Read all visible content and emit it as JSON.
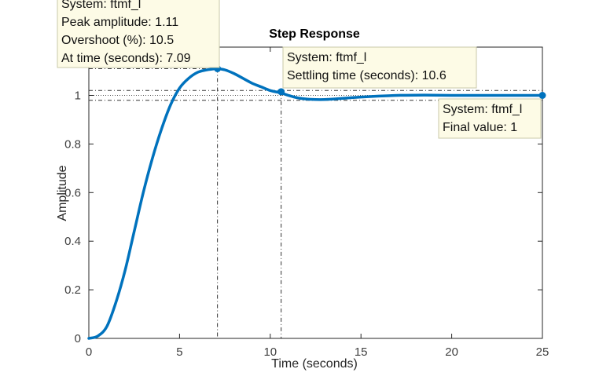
{
  "chart_data": {
    "type": "line",
    "title": "Step Response",
    "xlabel": "Time (seconds)",
    "ylabel": "Amplitude",
    "xlim": [
      0,
      25
    ],
    "ylim": [
      0,
      1.2
    ],
    "xticks": [
      0,
      5,
      10,
      15,
      20,
      25
    ],
    "xtick_labels": [
      "0",
      "5",
      "10",
      "15",
      "20",
      "25"
    ],
    "yticks": [
      0,
      0.2,
      0.4,
      0.6,
      0.8,
      1
    ],
    "ytick_labels": [
      "0",
      "0.2",
      "0.4",
      "0.6",
      "0.8",
      "1"
    ],
    "grid": false,
    "series": [
      {
        "color": "#0072bd",
        "x": [
          0,
          0.5,
          1,
          1.5,
          2,
          2.5,
          3,
          3.5,
          4,
          4.5,
          5,
          5.5,
          6,
          6.5,
          7,
          7.09,
          7.5,
          8,
          8.5,
          9,
          9.5,
          10,
          10.6,
          11,
          11.5,
          12,
          12.5,
          13,
          13.5,
          14,
          15,
          16,
          17,
          18,
          19,
          20,
          21,
          22,
          23,
          24,
          25
        ],
        "y": [
          0,
          0.01,
          0.05,
          0.15,
          0.28,
          0.44,
          0.6,
          0.74,
          0.86,
          0.96,
          1.03,
          1.07,
          1.095,
          1.105,
          1.11,
          1.11,
          1.105,
          1.09,
          1.07,
          1.05,
          1.035,
          1.02,
          1.01,
          1.0,
          0.99,
          0.985,
          0.983,
          0.983,
          0.985,
          0.988,
          0.993,
          0.997,
          1.0,
          1.001,
          1.001,
          1.0,
          1.0,
          1.0,
          1.0,
          1.0,
          1.0
        ]
      }
    ],
    "annotations": [
      {
        "kind": "peak",
        "x": 7.09,
        "y": 1.11,
        "lines": [
          "System: ftmf_l",
          "Peak amplitude: 1.11",
          "Overshoot (%): 10.5",
          "At time (seconds): 7.09"
        ]
      },
      {
        "kind": "settling",
        "x": 10.6,
        "y": 1.015,
        "lines": [
          "System: ftmf_l",
          "Settling time (seconds): 10.6"
        ]
      },
      {
        "kind": "final",
        "x": 25,
        "y": 1.0,
        "lines": [
          "System: ftmf_l",
          "Final value: 1"
        ]
      }
    ],
    "settling_band": [
      0.98,
      1.02
    ]
  }
}
